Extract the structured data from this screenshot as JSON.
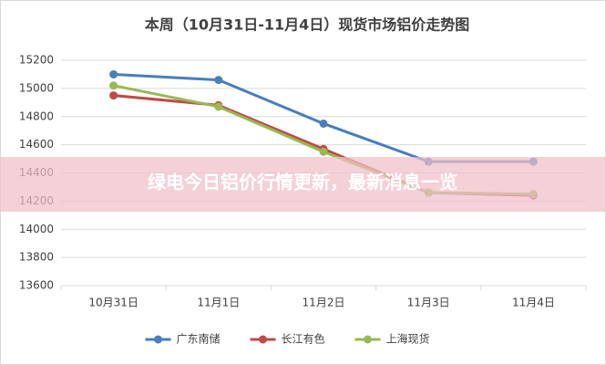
{
  "chart_data": {
    "type": "line",
    "title": "本周（10月31日-11月4日）现货市场铝价走势图",
    "categories": [
      "10月31日",
      "11月1日",
      "11月2日",
      "11月3日",
      "11月4日"
    ],
    "series": [
      {
        "name": "广东南储",
        "color": "#4a7ebb",
        "values": [
          15100,
          15060,
          14750,
          14480,
          14480
        ]
      },
      {
        "name": "长江有色",
        "color": "#be4b48",
        "values": [
          14950,
          14880,
          14570,
          14260,
          14240
        ]
      },
      {
        "name": "上海现货",
        "color": "#98b954",
        "values": [
          15020,
          14870,
          14550,
          14260,
          14250
        ]
      }
    ],
    "ylim": [
      13600,
      15200
    ],
    "yticks": [
      13600,
      13800,
      14000,
      14200,
      14400,
      14600,
      14800,
      15000,
      15200
    ],
    "grid": true,
    "legend": "bottom"
  },
  "overlay_text": "绿电今日铝价行情更新，最新消息一览"
}
